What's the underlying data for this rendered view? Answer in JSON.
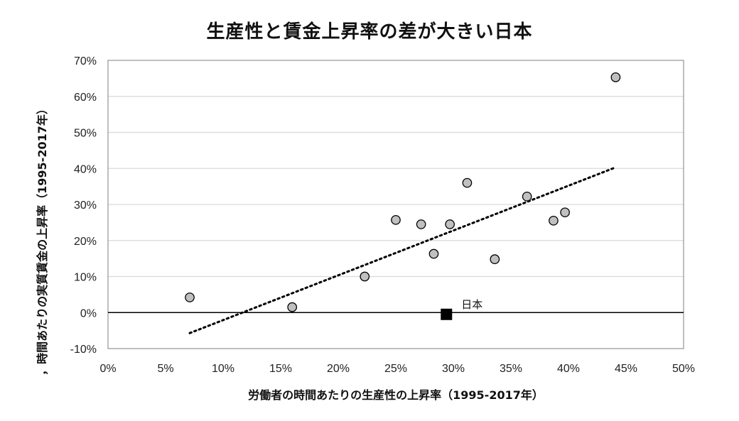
{
  "chart_data": {
    "type": "scatter",
    "title": "生産性と賃金上昇率の差が大きい日本",
    "xlabel": "労働者の時間あたりの生産性の上昇率（1995-2017年）",
    "ylabel": "，時間あたりの実質賃金の上昇率（1995-2017年）",
    "xlim": [
      0,
      0.5
    ],
    "ylim": [
      -0.1,
      0.7
    ],
    "x_ticks": [
      "0%",
      "5%",
      "10%",
      "15%",
      "20%",
      "25%",
      "30%",
      "35%",
      "40%",
      "45%",
      "50%"
    ],
    "y_ticks": [
      "-10%",
      "0%",
      "10%",
      "20%",
      "30%",
      "40%",
      "50%",
      "60%",
      "70%"
    ],
    "grid": "horizontal",
    "points": [
      {
        "x": 0.071,
        "y": 0.042
      },
      {
        "x": 0.16,
        "y": 0.015
      },
      {
        "x": 0.223,
        "y": 0.1
      },
      {
        "x": 0.25,
        "y": 0.257
      },
      {
        "x": 0.272,
        "y": 0.245
      },
      {
        "x": 0.283,
        "y": 0.163
      },
      {
        "x": 0.297,
        "y": 0.245
      },
      {
        "x": 0.312,
        "y": 0.36
      },
      {
        "x": 0.336,
        "y": 0.148
      },
      {
        "x": 0.364,
        "y": 0.322
      },
      {
        "x": 0.387,
        "y": 0.255
      },
      {
        "x": 0.397,
        "y": 0.278
      },
      {
        "x": 0.441,
        "y": 0.653
      }
    ],
    "highlight": {
      "label": "日本",
      "x": 0.294,
      "y": -0.005
    },
    "trendline": {
      "x": [
        0.071,
        0.441
      ],
      "y": [
        -0.057,
        0.403
      ]
    },
    "colors": {
      "point_fill": "#c0c0c0",
      "point_stroke": "#000000",
      "highlight": "#000000",
      "grid": "#d9d9d9"
    }
  }
}
